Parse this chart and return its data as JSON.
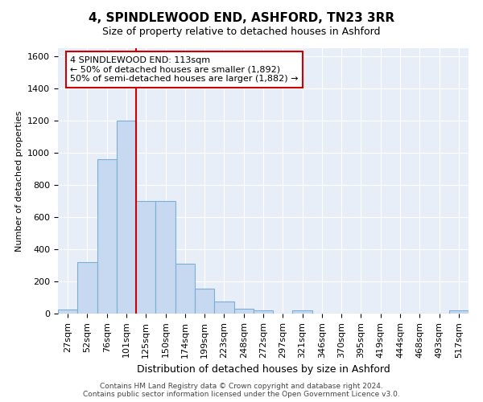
{
  "title": "4, SPINDLEWOOD END, ASHFORD, TN23 3RR",
  "subtitle": "Size of property relative to detached houses in Ashford",
  "xlabel": "Distribution of detached houses by size in Ashford",
  "ylabel": "Number of detached properties",
  "categories": [
    "27sqm",
    "52sqm",
    "76sqm",
    "101sqm",
    "125sqm",
    "150sqm",
    "174sqm",
    "199sqm",
    "223sqm",
    "248sqm",
    "272sqm",
    "297sqm",
    "321sqm",
    "346sqm",
    "370sqm",
    "395sqm",
    "419sqm",
    "444sqm",
    "468sqm",
    "493sqm",
    "517sqm"
  ],
  "values": [
    25,
    320,
    960,
    1200,
    700,
    700,
    310,
    155,
    75,
    30,
    20,
    0,
    20,
    0,
    0,
    0,
    0,
    0,
    0,
    0,
    20
  ],
  "bar_color": "#c6d9f0",
  "bar_edge_color": "#7bafd4",
  "vline_color": "#cc0000",
  "vline_x_index": 3.5,
  "annotation_text": "4 SPINDLEWOOD END: 113sqm\n← 50% of detached houses are smaller (1,892)\n50% of semi-detached houses are larger (1,882) →",
  "annotation_box_facecolor": "#ffffff",
  "annotation_box_edgecolor": "#cc0000",
  "ylim": [
    0,
    1650
  ],
  "yticks": [
    0,
    200,
    400,
    600,
    800,
    1000,
    1200,
    1400,
    1600
  ],
  "footer": "Contains HM Land Registry data © Crown copyright and database right 2024.\nContains public sector information licensed under the Open Government Licence v3.0.",
  "bg_color": "#e8eef8",
  "fig_bg_color": "#ffffff",
  "grid_color": "#ffffff",
  "title_fontsize": 11,
  "subtitle_fontsize": 9,
  "xlabel_fontsize": 9,
  "ylabel_fontsize": 8,
  "tick_fontsize": 8,
  "footer_fontsize": 6.5
}
